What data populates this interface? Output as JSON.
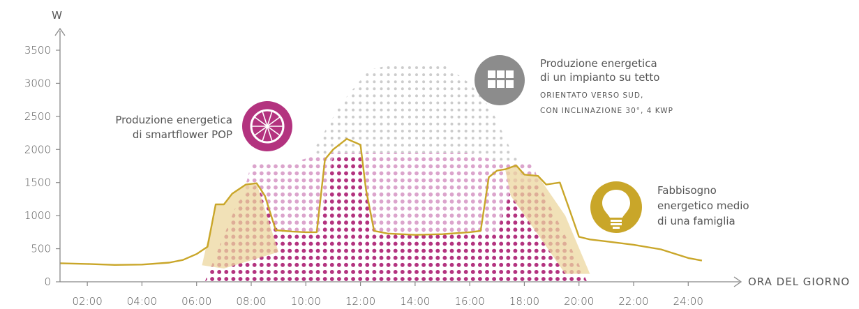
{
  "chart_data": {
    "type": "area",
    "ylabel": "W",
    "xlabel": "ORA DEL GIORNO",
    "ylim": [
      0,
      3500
    ],
    "xlim": [
      1.0,
      25.5
    ],
    "yticks": [
      0,
      500,
      1000,
      1500,
      2000,
      2500,
      3000,
      3500
    ],
    "xticks": [
      "02:00",
      "04:00",
      "06:00",
      "08:00",
      "10:00",
      "12:00",
      "14:00",
      "16:00",
      "18:00",
      "20:00",
      "22:00",
      "24:00"
    ],
    "grid": false,
    "series": [
      {
        "kind": "dotted-area",
        "color": "#cccccc",
        "x": [
          6.3,
          8.3,
          9.5,
          10.3,
          11.3,
          12.3,
          13.3,
          14.0,
          15.0,
          16.0,
          16.8,
          17.5,
          18.3,
          19.3,
          20.3
        ],
        "y": [
          0,
          700,
          1300,
          2000,
          2700,
          3200,
          3300,
          3300,
          3300,
          3000,
          2600,
          2000,
          1500,
          700,
          0
        ]
      },
      {
        "kind": "dotted-area",
        "color": "#dba4cc",
        "x": [
          6.3,
          7.5,
          8.0,
          8.7,
          9.5,
          10.3,
          11.0,
          12.0,
          13.0,
          14.0,
          15.0,
          16.0,
          16.8,
          17.3,
          18.3,
          19.0,
          20.3
        ],
        "y": [
          0,
          1000,
          1780,
          1800,
          1800,
          1900,
          1950,
          1950,
          1950,
          1950,
          1950,
          1950,
          1850,
          1800,
          1780,
          1000,
          0
        ]
      },
      {
        "kind": "dotted-area",
        "color": "#b3337f",
        "x": [
          6.3,
          7.0,
          7.5,
          8.2,
          9.0,
          10.5,
          11.0,
          12.0,
          12.5,
          14.0,
          16.0,
          17.0,
          17.6,
          18.5,
          19.5,
          20.3
        ],
        "y": [
          0,
          700,
          1200,
          1480,
          760,
          760,
          1900,
          1900,
          760,
          760,
          760,
          760,
          1500,
          1500,
          700,
          0
        ]
      },
      {
        "kind": "line",
        "color": "#c9a629",
        "x": [
          1.0,
          2.0,
          3.0,
          4.0,
          5.0,
          5.5,
          6.0,
          6.4,
          6.7,
          7.0,
          7.3,
          7.8,
          8.2,
          8.5,
          8.9,
          9.5,
          10.0,
          10.4,
          10.7,
          11.0,
          11.5,
          12.0,
          12.2,
          12.5,
          13.0,
          14.0,
          15.0,
          16.0,
          16.4,
          16.7,
          17.0,
          17.3,
          17.7,
          18.0,
          18.5,
          18.8,
          19.3,
          19.6,
          20.0,
          20.4,
          21.0,
          22.0,
          23.0,
          24.0,
          24.5
        ],
        "y": [
          280,
          270,
          255,
          260,
          290,
          330,
          420,
          530,
          1170,
          1170,
          1330,
          1470,
          1490,
          1300,
          780,
          760,
          750,
          750,
          1850,
          2000,
          2160,
          2070,
          1400,
          770,
          730,
          710,
          720,
          750,
          770,
          1580,
          1680,
          1700,
          1760,
          1620,
          1600,
          1470,
          1500,
          1150,
          680,
          640,
          610,
          560,
          490,
          360,
          320
        ]
      },
      {
        "kind": "shaded-area",
        "color": "#ecd79f",
        "x": [
          6.2,
          6.7,
          7.0,
          7.3,
          7.8,
          8.2,
          9.0,
          7.0
        ],
        "y": [
          250,
          1170,
          1170,
          1330,
          1470,
          1490,
          450,
          200
        ]
      },
      {
        "kind": "shaded-area",
        "color": "#ecd79f",
        "x": [
          17.3,
          17.7,
          18.0,
          18.5,
          19.0,
          19.5,
          20.4,
          19.5,
          17.5
        ],
        "y": [
          1700,
          1760,
          1620,
          1600,
          1300,
          1000,
          120,
          120,
          1300
        ]
      }
    ],
    "annotations": [
      {
        "name": "smartflower",
        "lines": [
          "Produzione energetica",
          "di smartflower POP"
        ],
        "icon": "smartflower-icon",
        "color": "#b3337f"
      },
      {
        "name": "roof",
        "lines": [
          "Produzione energetica",
          "di un impianto su tetto"
        ],
        "small_lines": [
          "ORIENTATO VERSO SUD,",
          "CON INCLINAZIONE 30°, 4 KWP"
        ],
        "icon": "solar-panel-icon",
        "color": "#8c8c8c"
      },
      {
        "name": "family",
        "lines": [
          "Fabbisogno",
          "energetico medio",
          "di una famiglia"
        ],
        "icon": "lightbulb-icon",
        "color": "#c9a629"
      }
    ]
  }
}
